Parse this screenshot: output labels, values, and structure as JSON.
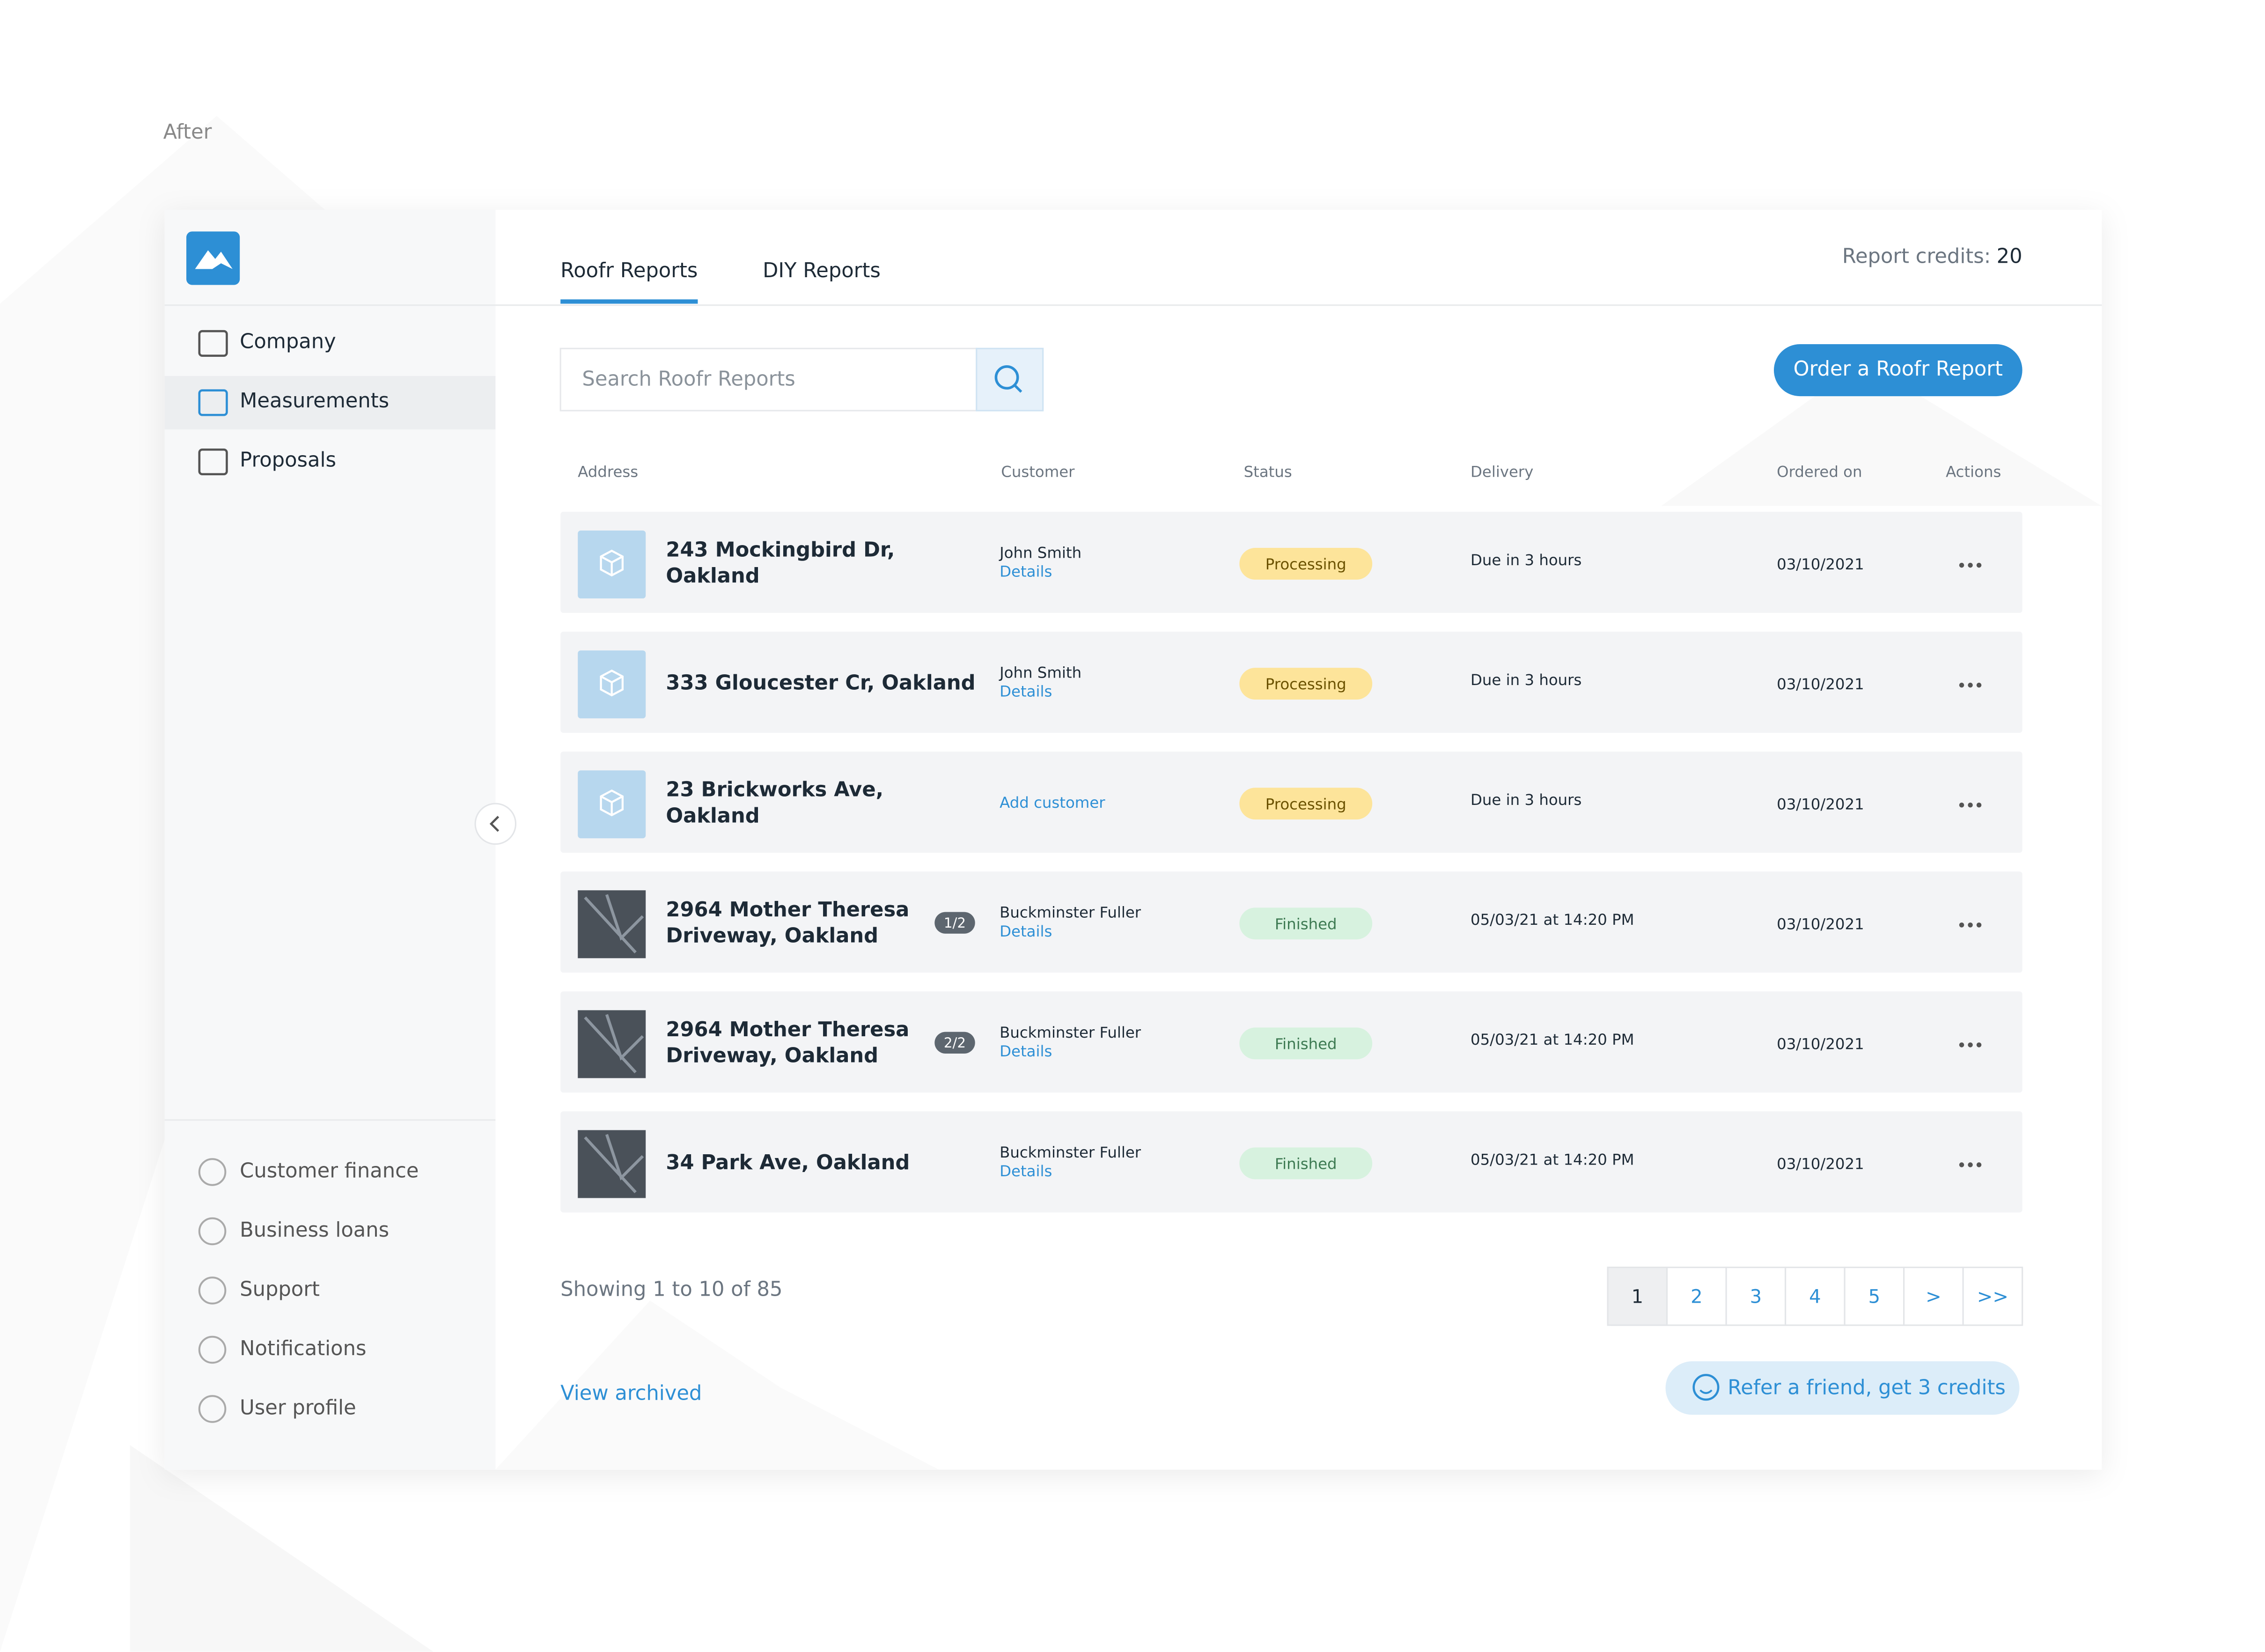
{
  "page_label": "After",
  "sidebar": {
    "top_items": [
      "Company",
      "Measurements",
      "Proposals"
    ],
    "active_index": 1,
    "bottom_items": [
      "Customer finance",
      "Business loans",
      "Support",
      "Notifications",
      "User profile"
    ]
  },
  "tabs": {
    "items": [
      "Roofr Reports",
      "DIY Reports"
    ],
    "active_index": 0
  },
  "credits": {
    "label": "Report credits:",
    "value": 20
  },
  "search": {
    "placeholder": "Search Roofr Reports"
  },
  "order_button": "Order a Roofr Report",
  "table": {
    "headers": [
      "Address",
      "Customer",
      "Status",
      "Delivery",
      "Ordered on",
      "Actions"
    ],
    "rows": [
      {
        "thumbnail": "icon",
        "address": "243 Mockingbird Dr, Oakland",
        "customer": "John Smith",
        "link": "Details",
        "status": "Processing",
        "delivery": "Due in 3 hours",
        "ordered": "03/10/2021"
      },
      {
        "thumbnail": "icon",
        "address": "333 Gloucester Cr, Oakland",
        "customer": "John Smith",
        "link": "Details",
        "status": "Processing",
        "delivery": "Due in 3 hours",
        "ordered": "03/10/2021"
      },
      {
        "thumbnail": "icon",
        "address": "23 Brickworks Ave, Oakland",
        "link": "Add customer",
        "status": "Processing",
        "delivery": "Due in 3 hours",
        "ordered": "03/10/2021"
      },
      {
        "thumbnail": "photo",
        "address": "2964 Mother Theresa Driveway, Oakland",
        "badge": "1/2",
        "customer": "Buckminster Fuller",
        "link": "Details",
        "status": "Finished",
        "delivery": "05/03/21 at 14:20 PM",
        "ordered": "03/10/2021"
      },
      {
        "thumbnail": "photo",
        "address": "2964 Mother Theresa Driveway, Oakland",
        "badge": "2/2",
        "customer": "Buckminster Fuller",
        "link": "Details",
        "status": "Finished",
        "delivery": "05/03/21 at 14:20 PM",
        "ordered": "03/10/2021"
      },
      {
        "thumbnail": "photo",
        "address": "34 Park Ave, Oakland",
        "customer": "Buckminster Fuller",
        "link": "Details",
        "status": "Finished",
        "delivery": "05/03/21 at 14:20 PM",
        "ordered": "03/10/2021"
      }
    ]
  },
  "showing": "Showing 1 to 10 of 85",
  "pagination": {
    "items": [
      "1",
      "2",
      "3",
      "4",
      "5",
      ">",
      ">>"
    ],
    "active_index": 0
  },
  "view_archived": "View archived",
  "refer": "Refer a friend, get 3 credits"
}
